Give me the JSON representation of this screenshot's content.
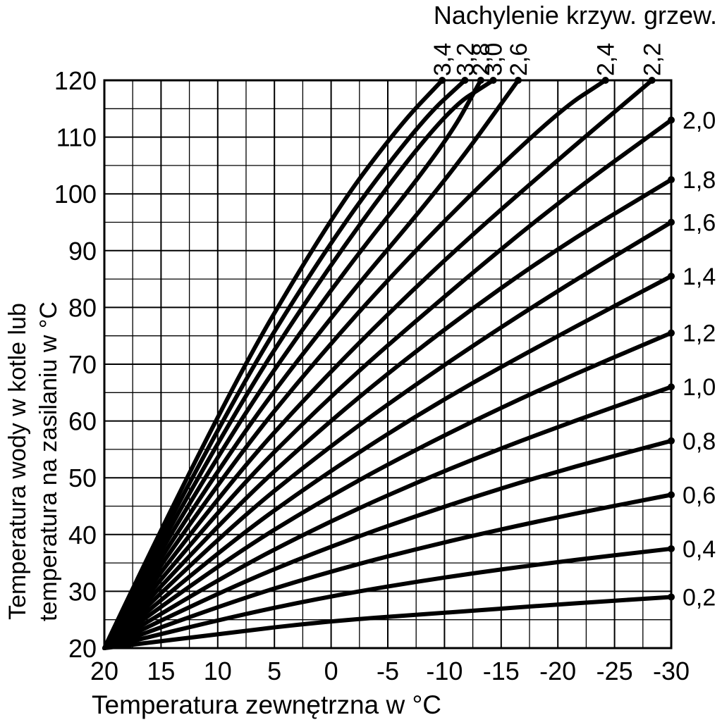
{
  "chart_data": {
    "type": "line",
    "title": "Nachylenie krzyw. grzew.",
    "xlabel": "Temperatura zewnętrzna w °C",
    "ylabel_line1": "Temperatura wody w kotle lub",
    "ylabel_line2": "temperatura na zasilaniu w °C",
    "xlim": [
      20,
      -30
    ],
    "ylim": [
      20,
      120
    ],
    "x_ticks": [
      20,
      15,
      10,
      5,
      0,
      -5,
      -10,
      -15,
      -20,
      -25,
      -30
    ],
    "x_tick_labels": [
      "20",
      "15",
      "10",
      "5",
      "0",
      "-5",
      "-10",
      "-15",
      "-20",
      "-25",
      "-30"
    ],
    "y_ticks": [
      20,
      30,
      40,
      50,
      60,
      70,
      80,
      90,
      100,
      110,
      120
    ],
    "y_tick_labels": [
      "20",
      "30",
      "40",
      "50",
      "60",
      "70",
      "80",
      "90",
      "100",
      "110",
      "120"
    ],
    "grid": true,
    "series": [
      {
        "name": "0,2",
        "x": [
          20,
          10,
          0,
          -10,
          -20,
          -30
        ],
        "y": [
          20,
          22.5,
          24.8,
          26.2,
          27.7,
          29
        ]
      },
      {
        "name": "0,4",
        "x": [
          20,
          10,
          0,
          -10,
          -20,
          -30
        ],
        "y": [
          20,
          25,
          29.2,
          32.5,
          35.2,
          37.5
        ]
      },
      {
        "name": "0,6",
        "x": [
          20,
          10,
          0,
          -10,
          -20,
          -30
        ],
        "y": [
          20,
          27.4,
          33.6,
          38.7,
          43.1,
          47
        ]
      },
      {
        "name": "0,8",
        "x": [
          20,
          10,
          0,
          -10,
          -20,
          -30
        ],
        "y": [
          20,
          29.8,
          38,
          45,
          51.2,
          56.5
        ]
      },
      {
        "name": "1,0",
        "x": [
          20,
          10,
          0,
          -10,
          -20,
          -30
        ],
        "y": [
          20,
          32.2,
          42.5,
          51.3,
          59,
          66
        ]
      },
      {
        "name": "1,2",
        "x": [
          20,
          10,
          0,
          -10,
          -20,
          -30
        ],
        "y": [
          20,
          34.7,
          47,
          57.6,
          67,
          75.5
        ]
      },
      {
        "name": "1,4",
        "x": [
          20,
          10,
          0,
          -10,
          -20,
          -30
        ],
        "y": [
          20,
          37.1,
          51.4,
          64,
          75,
          85.5
        ]
      },
      {
        "name": "1,6",
        "x": [
          20,
          10,
          0,
          -10,
          -20,
          -30
        ],
        "y": [
          20,
          39.6,
          55.8,
          70,
          83,
          95
        ]
      },
      {
        "name": "1,8",
        "x": [
          20,
          10,
          0,
          -10,
          -20,
          -30
        ],
        "y": [
          20,
          42,
          60.3,
          76.3,
          90.5,
          102.5
        ]
      },
      {
        "name": "2,0",
        "x": [
          20,
          10,
          0,
          -10,
          -20,
          -30
        ],
        "y": [
          20,
          44.5,
          64.6,
          82,
          98.5,
          113
        ]
      },
      {
        "name": "2,2",
        "x": [
          20,
          10,
          0,
          -10,
          -20,
          -28.3
        ],
        "y": [
          20,
          47,
          69,
          88.5,
          106,
          120
        ]
      },
      {
        "name": "2,4",
        "x": [
          20,
          10,
          0,
          -10,
          -20,
          -24.2
        ],
        "y": [
          20,
          49.5,
          74,
          95.5,
          114.5,
          120
        ]
      },
      {
        "name": "2,6",
        "x": [
          20,
          10,
          0,
          -10,
          -16.5
        ],
        "y": [
          20,
          52,
          78.5,
          102,
          120
        ]
      },
      {
        "name": "2,8",
        "x": [
          20,
          10,
          0,
          -10,
          -13.2
        ],
        "y": [
          20,
          54.5,
          83.5,
          108.5,
          120
        ]
      },
      {
        "name": "3,0",
        "x": [
          20,
          10,
          0,
          -10,
          -14.3
        ],
        "y": [
          20,
          57,
          88,
          114.5,
          120
        ]
      },
      {
        "name": "3,2",
        "x": [
          20,
          10,
          0,
          -8,
          -11.8
        ],
        "y": [
          20,
          59.5,
          92,
          113,
          120
        ]
      },
      {
        "name": "3,4",
        "x": [
          20,
          10,
          0,
          -6,
          -9.8
        ],
        "y": [
          20,
          62,
          96,
          112,
          120
        ]
      }
    ],
    "right_labels": [
      "2,0",
      "1,8",
      "1,6",
      "1,4",
      "1,2",
      "1,0",
      "0,8",
      "0,6",
      "0,4",
      "0,2"
    ],
    "top_labels": [
      "3,4",
      "3,2",
      "3,0",
      "2,8",
      "2,6",
      "2,4",
      "2,2"
    ],
    "line_color": "#000000",
    "grid_color": "#000000"
  }
}
